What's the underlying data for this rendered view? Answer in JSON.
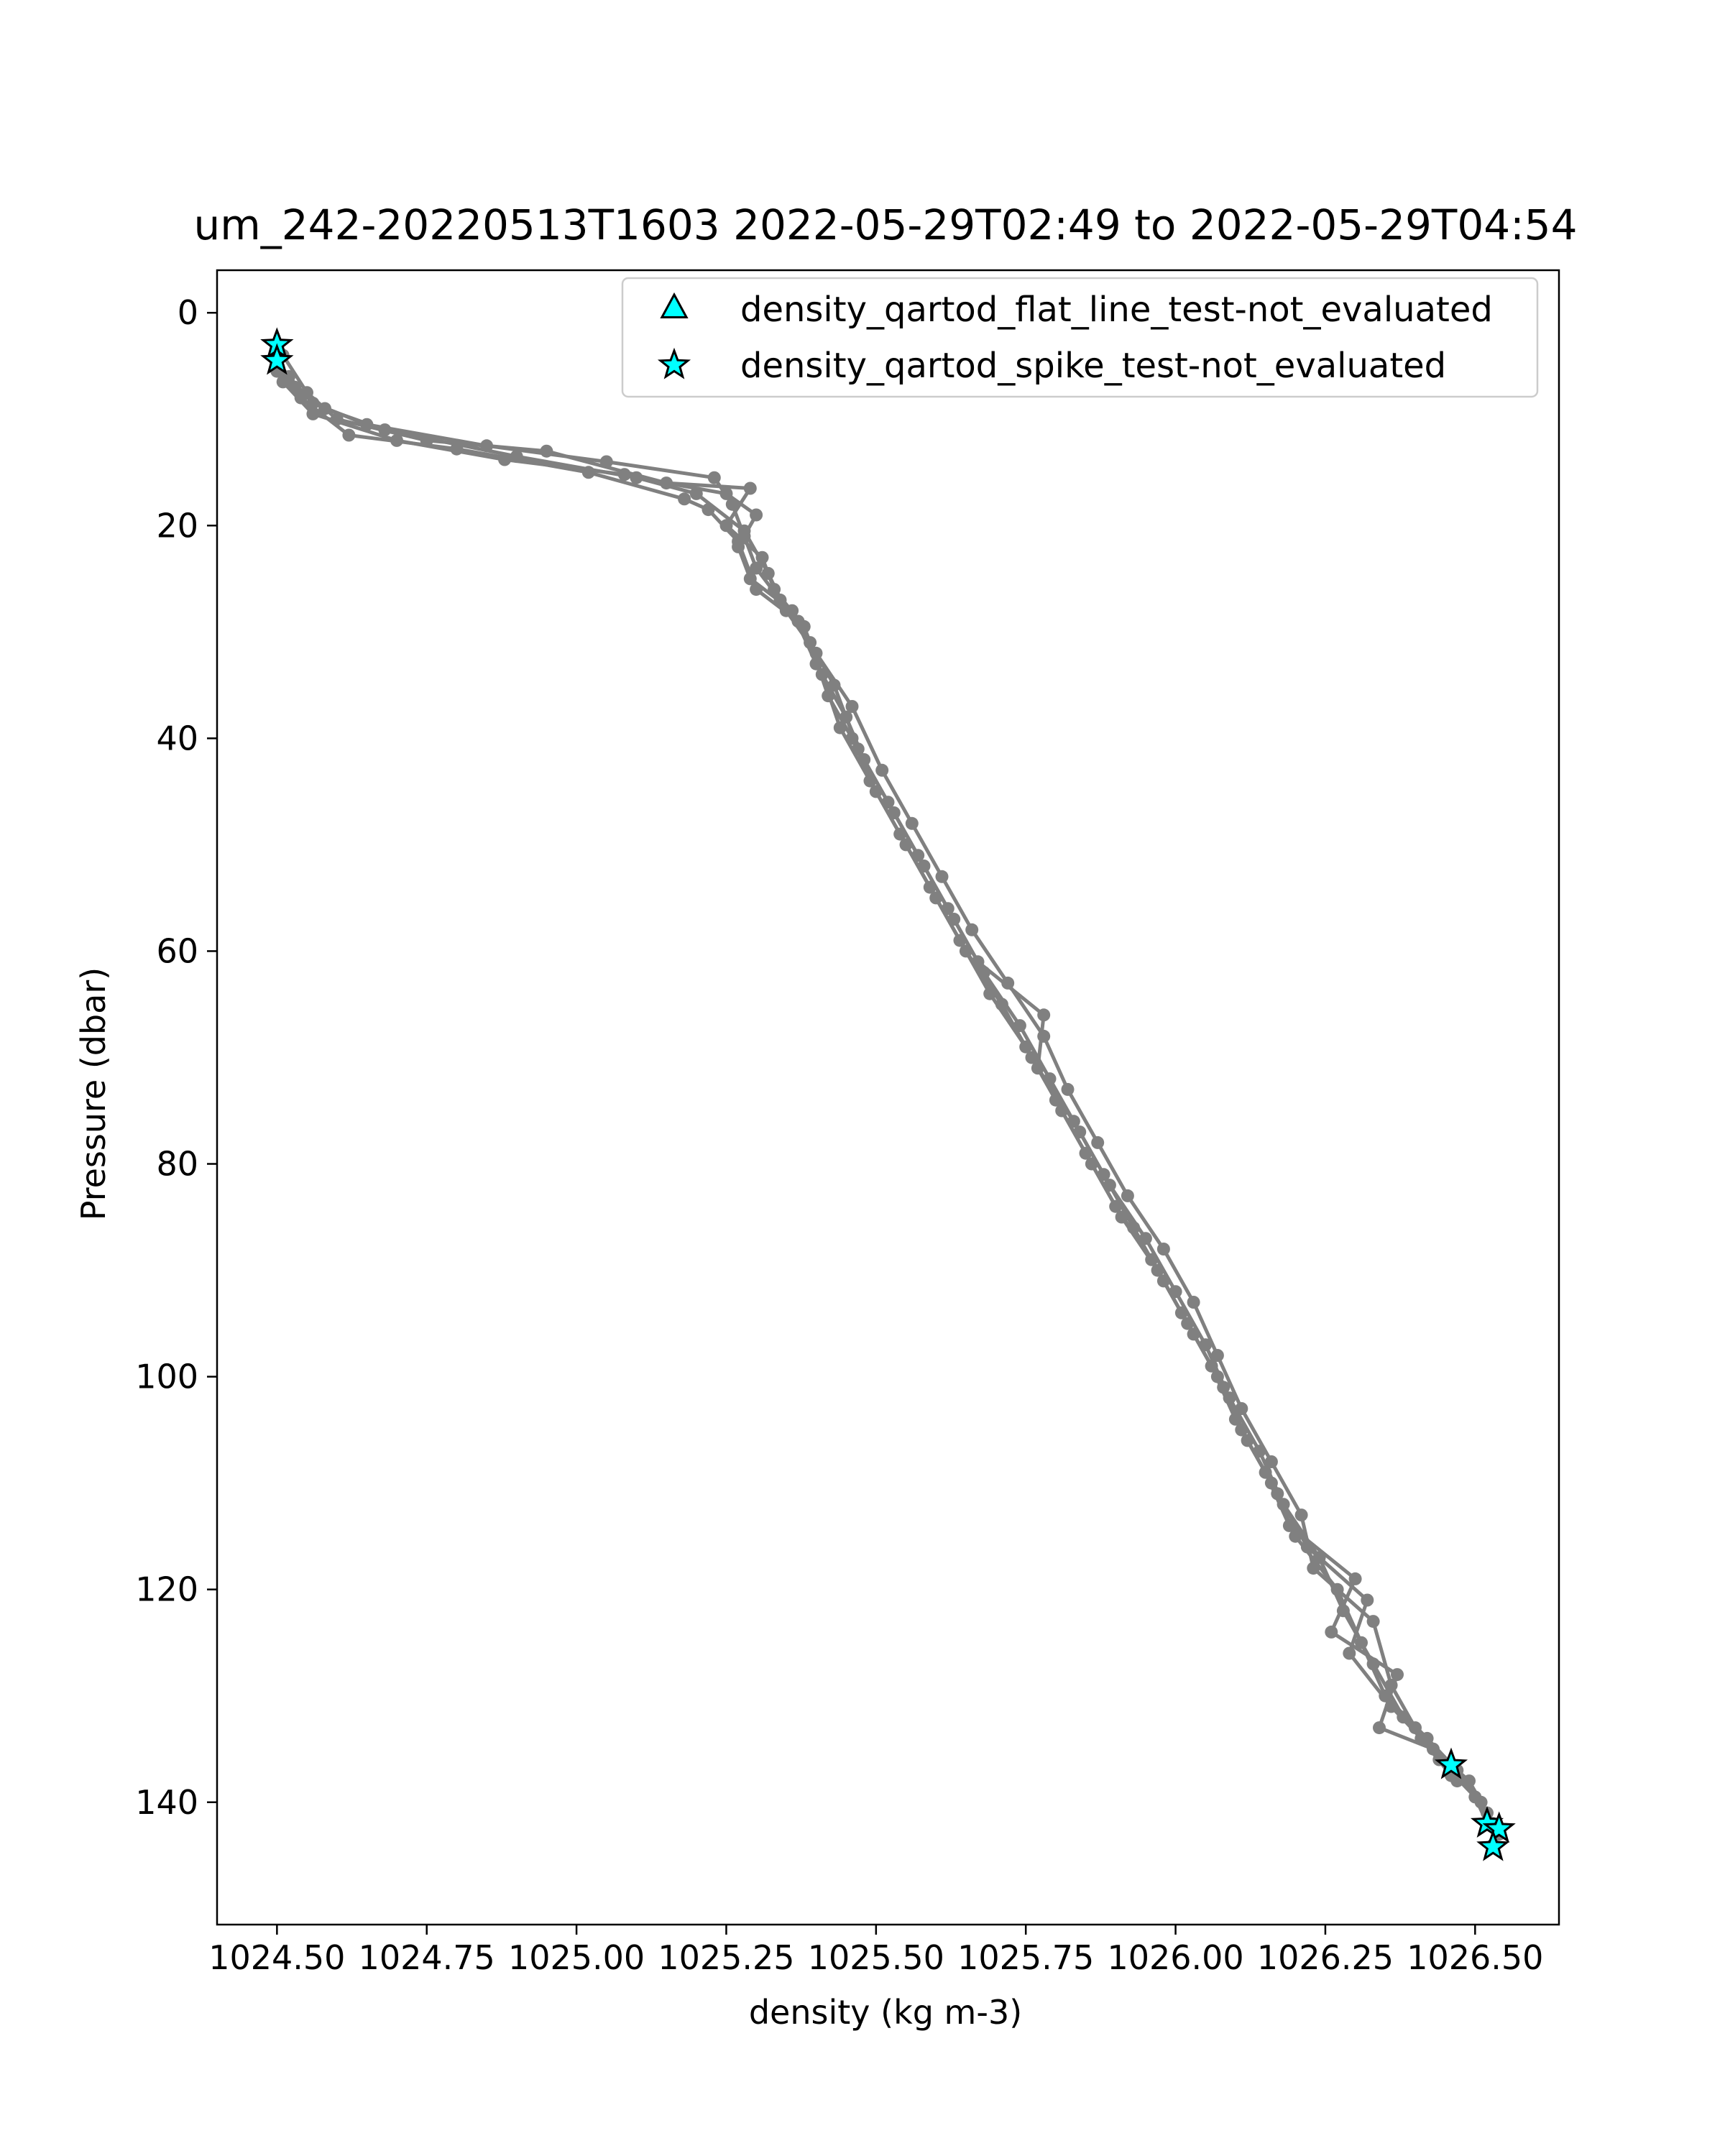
{
  "chart_data": {
    "type": "scatter",
    "title": "um_242-20220513T1603 2022-05-29T02:49 to 2022-05-29T04:54",
    "xlabel": "density (kg m-3)",
    "ylabel": "Pressure (dbar)",
    "xlim": [
      1024.4,
      1026.64
    ],
    "ylim": [
      151.5,
      -4
    ],
    "y_inverted": true,
    "grid": false,
    "x_ticks": [
      1024.5,
      1024.75,
      1025.0,
      1025.25,
      1025.5,
      1025.75,
      1026.0,
      1026.25,
      1026.5
    ],
    "x_tick_labels": [
      "1024.50",
      "1024.75",
      "1025.00",
      "1025.25",
      "1025.50",
      "1025.75",
      "1026.00",
      "1026.25",
      "1026.50"
    ],
    "y_ticks": [
      0,
      20,
      40,
      60,
      80,
      100,
      120,
      140
    ],
    "y_tick_labels": [
      "0",
      "20",
      "40",
      "60",
      "80",
      "100",
      "120",
      "140"
    ],
    "legend": {
      "placement": "top-right",
      "entries": [
        {
          "label": "density_qartod_flat_line_test-not_evaluated",
          "marker": "triangle",
          "color": "#00ffff"
        },
        {
          "label": "density_qartod_spike_test-not_evaluated",
          "marker": "star",
          "color": "#00ffff"
        }
      ]
    },
    "profile_color": "#808080",
    "flag_color": "#00ffff",
    "series": [
      {
        "kind": "profile",
        "points": [
          [
            1024.5,
            4.5
          ],
          [
            1024.52,
            6
          ],
          [
            1024.56,
            8.5
          ],
          [
            1024.65,
            10.5
          ],
          [
            1024.85,
            12.5
          ],
          [
            1025.05,
            14
          ],
          [
            1025.23,
            15.5
          ],
          [
            1025.26,
            18
          ],
          [
            1025.28,
            21
          ],
          [
            1025.3,
            24
          ],
          [
            1025.34,
            27
          ],
          [
            1025.39,
            31
          ],
          [
            1025.42,
            36
          ],
          [
            1025.46,
            40
          ],
          [
            1025.5,
            45
          ],
          [
            1025.55,
            50
          ],
          [
            1025.6,
            55
          ],
          [
            1025.65,
            60
          ],
          [
            1025.71,
            65
          ],
          [
            1025.76,
            70
          ],
          [
            1025.81,
            75
          ],
          [
            1025.86,
            80
          ],
          [
            1025.91,
            85
          ],
          [
            1025.97,
            90
          ],
          [
            1026.02,
            95
          ],
          [
            1026.07,
            100
          ],
          [
            1026.11,
            105
          ],
          [
            1026.16,
            110
          ],
          [
            1026.2,
            115
          ],
          [
            1026.27,
            120
          ],
          [
            1026.31,
            125
          ],
          [
            1026.35,
            130
          ],
          [
            1026.42,
            134
          ],
          [
            1026.47,
            137
          ],
          [
            1026.51,
            140
          ],
          [
            1026.53,
            142
          ],
          [
            1026.53,
            144
          ]
        ]
      },
      {
        "kind": "profile",
        "points": [
          [
            1024.5,
            5
          ],
          [
            1024.53,
            7
          ],
          [
            1024.58,
            9
          ],
          [
            1024.68,
            11
          ],
          [
            1024.9,
            13.5
          ],
          [
            1025.1,
            15.5
          ],
          [
            1025.25,
            17
          ],
          [
            1025.3,
            19
          ],
          [
            1025.27,
            22
          ],
          [
            1025.29,
            25
          ],
          [
            1025.36,
            28
          ],
          [
            1025.4,
            33
          ],
          [
            1025.45,
            38
          ],
          [
            1025.48,
            42
          ],
          [
            1025.53,
            47
          ],
          [
            1025.58,
            52
          ],
          [
            1025.63,
            57
          ],
          [
            1025.68,
            62
          ],
          [
            1025.74,
            67
          ],
          [
            1025.79,
            72
          ],
          [
            1025.84,
            77
          ],
          [
            1025.89,
            82
          ],
          [
            1025.95,
            87
          ],
          [
            1026.0,
            92
          ],
          [
            1026.05,
            97
          ],
          [
            1026.09,
            102
          ],
          [
            1026.14,
            107
          ],
          [
            1026.18,
            112
          ],
          [
            1026.24,
            117
          ],
          [
            1026.28,
            122
          ],
          [
            1026.33,
            127
          ],
          [
            1026.38,
            132
          ],
          [
            1026.44,
            136
          ],
          [
            1026.5,
            139.5
          ],
          [
            1026.52,
            142
          ]
        ]
      },
      {
        "kind": "profile",
        "points": [
          [
            1024.51,
            4
          ],
          [
            1024.55,
            7.5
          ],
          [
            1024.6,
            10
          ],
          [
            1024.75,
            12
          ],
          [
            1024.95,
            13
          ],
          [
            1025.15,
            16
          ],
          [
            1025.29,
            16.5
          ],
          [
            1025.25,
            20
          ],
          [
            1025.31,
            23
          ],
          [
            1025.33,
            26
          ],
          [
            1025.38,
            29.5
          ],
          [
            1025.41,
            34
          ],
          [
            1025.44,
            39
          ],
          [
            1025.49,
            44
          ],
          [
            1025.54,
            49
          ],
          [
            1025.59,
            54
          ],
          [
            1025.64,
            59
          ],
          [
            1025.69,
            64
          ],
          [
            1025.75,
            69
          ],
          [
            1025.8,
            74
          ],
          [
            1025.85,
            79
          ],
          [
            1025.9,
            84
          ],
          [
            1025.96,
            89
          ],
          [
            1026.01,
            94
          ],
          [
            1026.06,
            99
          ],
          [
            1026.1,
            104
          ],
          [
            1026.15,
            109
          ],
          [
            1026.19,
            114
          ],
          [
            1026.3,
            119
          ],
          [
            1026.26,
            124
          ],
          [
            1026.37,
            128
          ],
          [
            1026.34,
            133
          ],
          [
            1026.43,
            135
          ],
          [
            1026.49,
            138
          ],
          [
            1026.52,
            141
          ],
          [
            1026.54,
            143
          ]
        ]
      },
      {
        "kind": "profile",
        "points": [
          [
            1024.5,
            5.5
          ],
          [
            1024.54,
            8
          ],
          [
            1024.62,
            11.5
          ],
          [
            1024.8,
            12.8
          ],
          [
            1025.02,
            15
          ],
          [
            1025.18,
            17.5
          ],
          [
            1025.22,
            18.5
          ],
          [
            1025.27,
            21.5
          ],
          [
            1025.3,
            26
          ],
          [
            1025.37,
            29
          ],
          [
            1025.43,
            35
          ],
          [
            1025.47,
            41
          ],
          [
            1025.52,
            46
          ],
          [
            1025.57,
            51
          ],
          [
            1025.62,
            56
          ],
          [
            1025.67,
            61
          ],
          [
            1025.78,
            66
          ],
          [
            1025.77,
            71
          ],
          [
            1025.83,
            76
          ],
          [
            1025.88,
            81
          ],
          [
            1025.93,
            86
          ],
          [
            1025.98,
            91
          ],
          [
            1026.03,
            96
          ],
          [
            1026.08,
            101
          ],
          [
            1026.12,
            106
          ],
          [
            1026.17,
            111
          ],
          [
            1026.22,
            116
          ],
          [
            1026.32,
            121
          ],
          [
            1026.29,
            126
          ],
          [
            1026.36,
            131
          ],
          [
            1026.41,
            134
          ],
          [
            1026.46,
            137.5
          ]
        ]
      },
      {
        "kind": "profile",
        "points": [
          [
            1024.51,
            6.5
          ],
          [
            1024.56,
            9.5
          ],
          [
            1024.7,
            12
          ],
          [
            1024.88,
            13.8
          ],
          [
            1025.08,
            15.2
          ],
          [
            1025.2,
            17
          ],
          [
            1025.28,
            20.5
          ],
          [
            1025.32,
            24.5
          ],
          [
            1025.35,
            28
          ],
          [
            1025.4,
            32
          ],
          [
            1025.46,
            37
          ],
          [
            1025.51,
            43
          ],
          [
            1025.56,
            48
          ],
          [
            1025.61,
            53
          ],
          [
            1025.66,
            58
          ],
          [
            1025.72,
            63
          ],
          [
            1025.78,
            68
          ],
          [
            1025.82,
            73
          ],
          [
            1025.87,
            78
          ],
          [
            1025.92,
            83
          ],
          [
            1025.98,
            88
          ],
          [
            1026.03,
            93
          ],
          [
            1026.07,
            98
          ],
          [
            1026.11,
            103
          ],
          [
            1026.16,
            108
          ],
          [
            1026.21,
            113
          ],
          [
            1026.23,
            118
          ],
          [
            1026.33,
            123
          ],
          [
            1026.36,
            129
          ],
          [
            1026.4,
            133
          ],
          [
            1026.47,
            138
          ]
        ]
      }
    ],
    "flags": [
      {
        "test": "density_qartod_spike_test-not_evaluated",
        "marker": "star",
        "points": [
          [
            1024.5,
            3
          ],
          [
            1024.5,
            4.5
          ],
          [
            1026.46,
            136.5
          ],
          [
            1026.52,
            142
          ],
          [
            1026.54,
            142.5
          ],
          [
            1026.53,
            144.2
          ]
        ]
      }
    ]
  }
}
